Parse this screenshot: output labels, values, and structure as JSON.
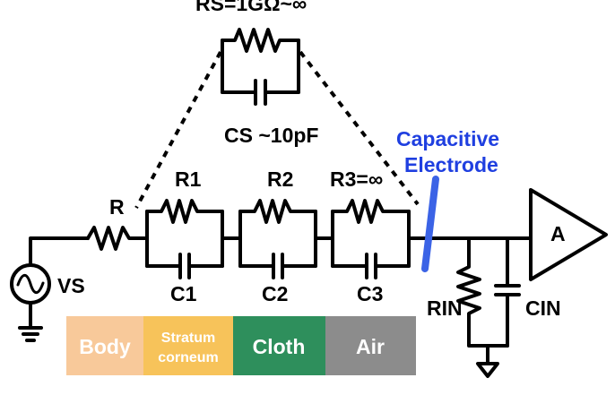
{
  "labels": {
    "rs": "RS=1GΩ~∞",
    "cs": "CS ~10pF",
    "r": "R",
    "r1": "R1",
    "r2": "R2",
    "r3": "R3=∞",
    "c1": "C1",
    "c2": "C2",
    "c3": "C3",
    "vs": "VS",
    "rin": "RIN",
    "cin": "CIN",
    "amp": "A",
    "electrode_line1": "Capacitive",
    "electrode_line2": "Electrode"
  },
  "layers": [
    {
      "label": "Body",
      "color": "#f8c99a"
    },
    {
      "label_line1": "Stratum",
      "label_line2": "corneum",
      "color": "#f7c35a"
    },
    {
      "label": "Cloth",
      "color": "#2e8f5c"
    },
    {
      "label": "Air",
      "color": "#8c8c8c"
    }
  ],
  "colors": {
    "electrode": "#3b63e6",
    "accent_text": "#1f3fe0"
  }
}
